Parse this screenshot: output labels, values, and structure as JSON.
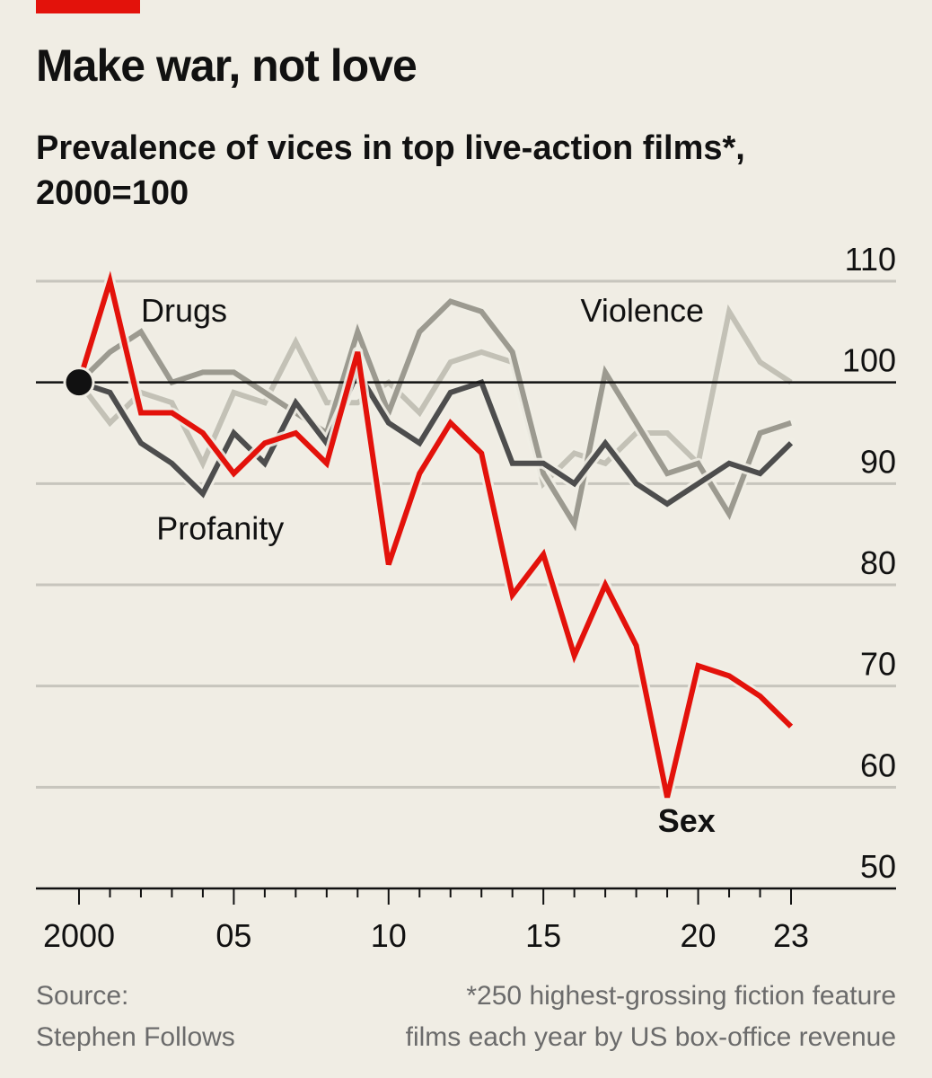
{
  "header": {
    "title": "Make war, not love",
    "subtitle_line1": "Prevalence of vices in top live-action films*,",
    "subtitle_line2": "2000=100"
  },
  "footer": {
    "source_line1": "Source:",
    "source_line2": "Stephen Follows",
    "note_line1": "*250 highest-grossing fiction feature",
    "note_line2": "films each year by US box-office revenue"
  },
  "colors": {
    "background": "#f0ede4",
    "brand_red": "#e3120b",
    "sex": "#e3120b",
    "profanity": "#4d4d4d",
    "drugs": "#9c9a90",
    "violence": "#c3c1b6",
    "gridline": "#c7c5bd",
    "baseline": "#111111"
  },
  "chart_data": {
    "type": "line",
    "title": "Make war, not love",
    "subtitle": "Prevalence of vices in top live-action films*, 2000=100",
    "xlim": [
      2000,
      2023
    ],
    "ylim": [
      50,
      110
    ],
    "yticks": [
      50,
      60,
      70,
      80,
      90,
      100,
      110
    ],
    "xticks": [
      {
        "value": 2000,
        "label": "2000"
      },
      {
        "value": 2005,
        "label": "05"
      },
      {
        "value": 2010,
        "label": "10"
      },
      {
        "value": 2015,
        "label": "15"
      },
      {
        "value": 2020,
        "label": "20"
      },
      {
        "value": 2023,
        "label": "23"
      }
    ],
    "reference_line": 100,
    "grid": true,
    "y_axis_side": "right",
    "x": [
      2000,
      2001,
      2002,
      2003,
      2004,
      2005,
      2006,
      2007,
      2008,
      2009,
      2010,
      2011,
      2012,
      2013,
      2014,
      2015,
      2016,
      2017,
      2018,
      2019,
      2020,
      2021,
      2022,
      2023
    ],
    "series": [
      {
        "name": "Violence",
        "values": [
          100,
          96,
          99,
          98,
          92,
          99,
          98,
          104,
          98,
          98,
          100,
          97,
          102,
          103,
          102,
          90,
          93,
          92,
          95,
          95,
          92,
          107,
          102,
          100
        ],
        "color": "#c3c1b6"
      },
      {
        "name": "Drugs",
        "values": [
          100,
          103,
          105,
          100,
          101,
          101,
          99,
          97,
          95,
          105,
          97,
          105,
          108,
          107,
          103,
          91,
          86,
          101,
          96,
          91,
          92,
          87,
          95,
          96
        ],
        "color": "#9c9a90"
      },
      {
        "name": "Profanity",
        "values": [
          100,
          99,
          94,
          92,
          89,
          95,
          92,
          98,
          94,
          101,
          96,
          94,
          99,
          100,
          92,
          92,
          90,
          94,
          90,
          88,
          90,
          92,
          91,
          94
        ],
        "color": "#4d4d4d"
      },
      {
        "name": "Sex",
        "values": [
          100,
          110,
          97,
          97,
          95,
          91,
          94,
          95,
          92,
          103,
          82,
          91,
          96,
          93,
          79,
          83,
          73,
          80,
          74,
          59,
          72,
          71,
          69,
          66
        ],
        "color": "#e3120b"
      }
    ],
    "series_labels": [
      {
        "text": "Drugs",
        "x": 2002,
        "y": 106,
        "weight": "normal"
      },
      {
        "text": "Violence",
        "x": 2016.2,
        "y": 106,
        "weight": "normal"
      },
      {
        "text": "Profanity",
        "x": 2002.5,
        "y": 84.5,
        "weight": "normal"
      },
      {
        "text": "Sex",
        "x": 2018.7,
        "y": 55.6,
        "weight": "bold"
      }
    ]
  }
}
